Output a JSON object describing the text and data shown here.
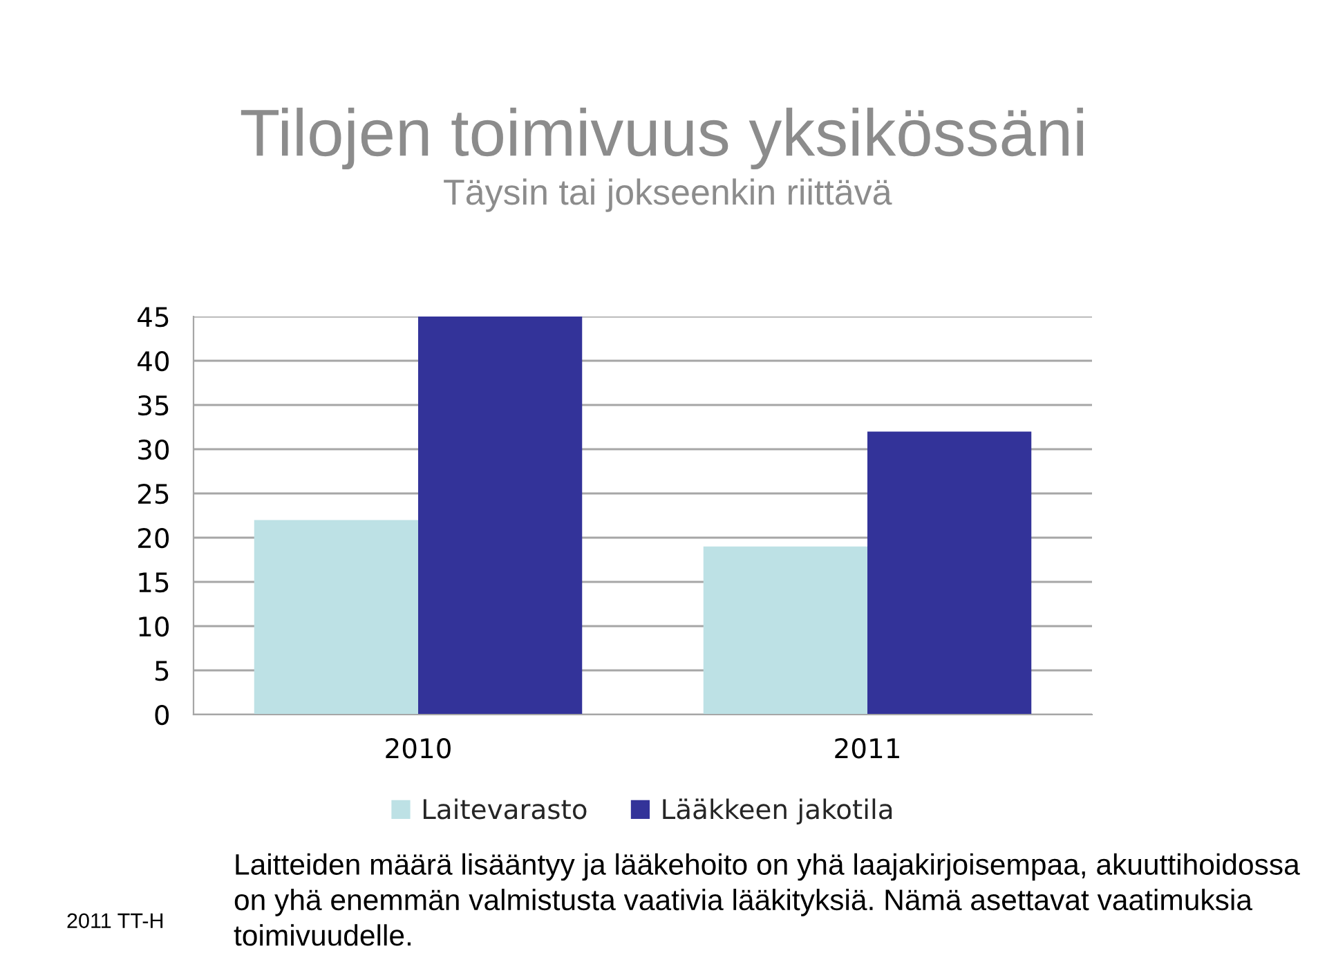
{
  "chart_data": {
    "type": "bar",
    "title": "Tilojen toimivuus yksikössäni",
    "subtitle": "Täysin tai jokseenkin riittävä",
    "categories": [
      "2010",
      "2011"
    ],
    "series": [
      {
        "name": "Laitevarasto",
        "color": "#bde1e5",
        "values": [
          22,
          19
        ]
      },
      {
        "name": "Lääkkeen jakotila",
        "color": "#333399",
        "values": [
          45,
          32
        ]
      }
    ],
    "ylim": [
      0,
      45
    ],
    "yticks": [
      0,
      5,
      10,
      15,
      20,
      25,
      30,
      35,
      40,
      45
    ],
    "grid": "y",
    "legend": "bottom",
    "annotations": [
      "Laitteiden määrä lisääntyy ja lääkehoito on yhä laajakirjoisempaa, akuuttihoidossa on yhä enemmän valmistusta vaativia lääkityksiä. Nämä asettavat vaatimuksia toimivuudelle.",
      "2011 TT-H"
    ]
  }
}
